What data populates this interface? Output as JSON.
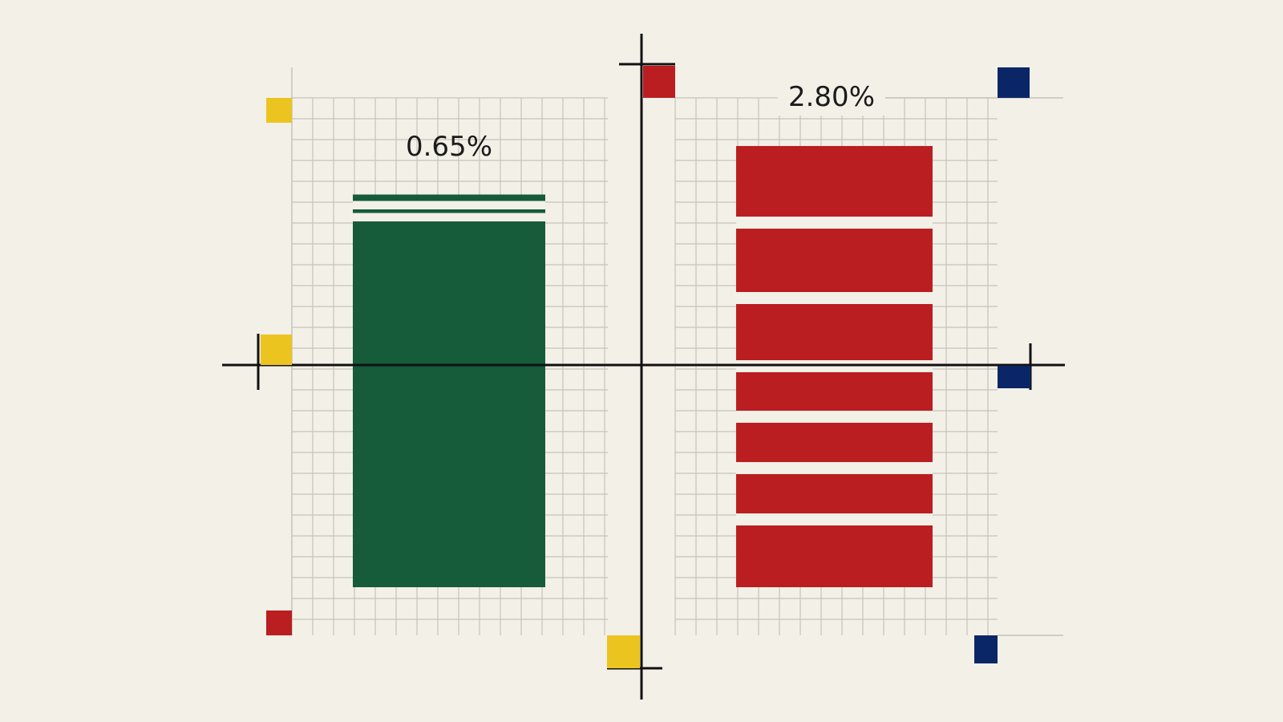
{
  "chart_data": {
    "type": "bar",
    "title": "",
    "xlabel": "",
    "ylabel": "",
    "categories": [
      "",
      ""
    ],
    "values": [
      0.65,
      2.8
    ],
    "value_labels": [
      "0.65%",
      "2.80%"
    ],
    "unit": "%",
    "grid": true,
    "legend": "none",
    "colors": {
      "bar_green": "#165b3a",
      "bar_red": "#bb1e20",
      "accent_yellow": "#ecc420",
      "accent_red": "#bb1e20",
      "accent_navy": "#0b2667",
      "axis": "#111111",
      "grid": "#c6c3bb",
      "background": "#f3f0e8",
      "stripe": "#f3f0e8"
    }
  }
}
